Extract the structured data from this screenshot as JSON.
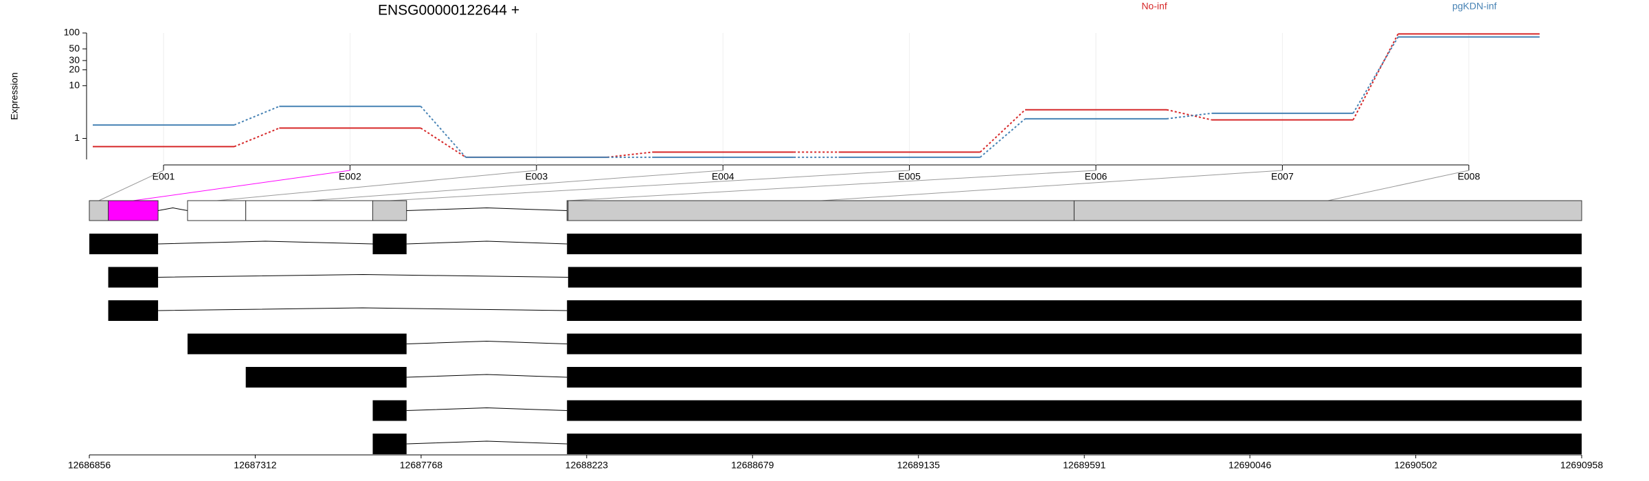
{
  "chart_data": [
    {
      "type": "line",
      "title": "ENSG00000122644 +",
      "y_label": "Expression",
      "log_y": true,
      "categories": [
        "E001",
        "E002",
        "E003",
        "E004",
        "E005",
        "E006",
        "E007",
        "E008"
      ],
      "series": [
        {
          "name": "No-inf",
          "color": "#d62728",
          "values": [
            0.7,
            1.57,
            0.44,
            0.55,
            0.55,
            3.5,
            2.25,
            96
          ]
        },
        {
          "name": "pgKDN-inf",
          "color": "#4682b4",
          "values": [
            1.8,
            4.06,
            0.44,
            0.44,
            0.44,
            2.36,
            3.0,
            84
          ]
        }
      ],
      "ylim": [
        0.4,
        100
      ],
      "yticks": [
        1,
        10,
        20,
        30,
        50,
        100
      ]
    },
    {
      "type": "gene-model",
      "xlim": [
        12686856,
        12690958
      ],
      "xticks": [
        12686856,
        12687312,
        12687768,
        12688223,
        12688679,
        12689135,
        12689591,
        12690046,
        12690502,
        12690958
      ],
      "bins": [
        {
          "start": 12686856,
          "end": 12686908,
          "color": "#cccccc"
        },
        {
          "start": 12686908,
          "end": 12687045,
          "color": "#ff00ff"
        },
        {
          "start": 12687126,
          "end": 12687286,
          "color": "#ffffff"
        },
        {
          "start": 12687286,
          "end": 12687635,
          "color": "#ffffff"
        },
        {
          "start": 12687635,
          "end": 12687728,
          "color": "#cccccc"
        },
        {
          "start": 12688169,
          "end": 12688172,
          "color": "#cccccc"
        },
        {
          "start": 12688172,
          "end": 12689563,
          "color": "#cccccc"
        },
        {
          "start": 12689563,
          "end": 12690958,
          "color": "#cccccc"
        }
      ],
      "transcripts": [
        [
          [
            12686856,
            12687045
          ],
          [
            12687635,
            12687728
          ],
          [
            12688169,
            12690958
          ]
        ],
        [
          [
            12686908,
            12687045
          ],
          [
            12688172,
            12690958
          ]
        ],
        [
          [
            12686908,
            12687045
          ],
          [
            12688169,
            12690958
          ]
        ],
        [
          [
            12687126,
            12687728
          ],
          [
            12688169,
            12690958
          ]
        ],
        [
          [
            12687286,
            12687728
          ],
          [
            12688169,
            12690958
          ]
        ],
        [
          [
            12687635,
            12687728
          ],
          [
            12688169,
            12690958
          ]
        ],
        [
          [
            12687635,
            12687728
          ],
          [
            12688169,
            12690958
          ]
        ]
      ]
    }
  ]
}
